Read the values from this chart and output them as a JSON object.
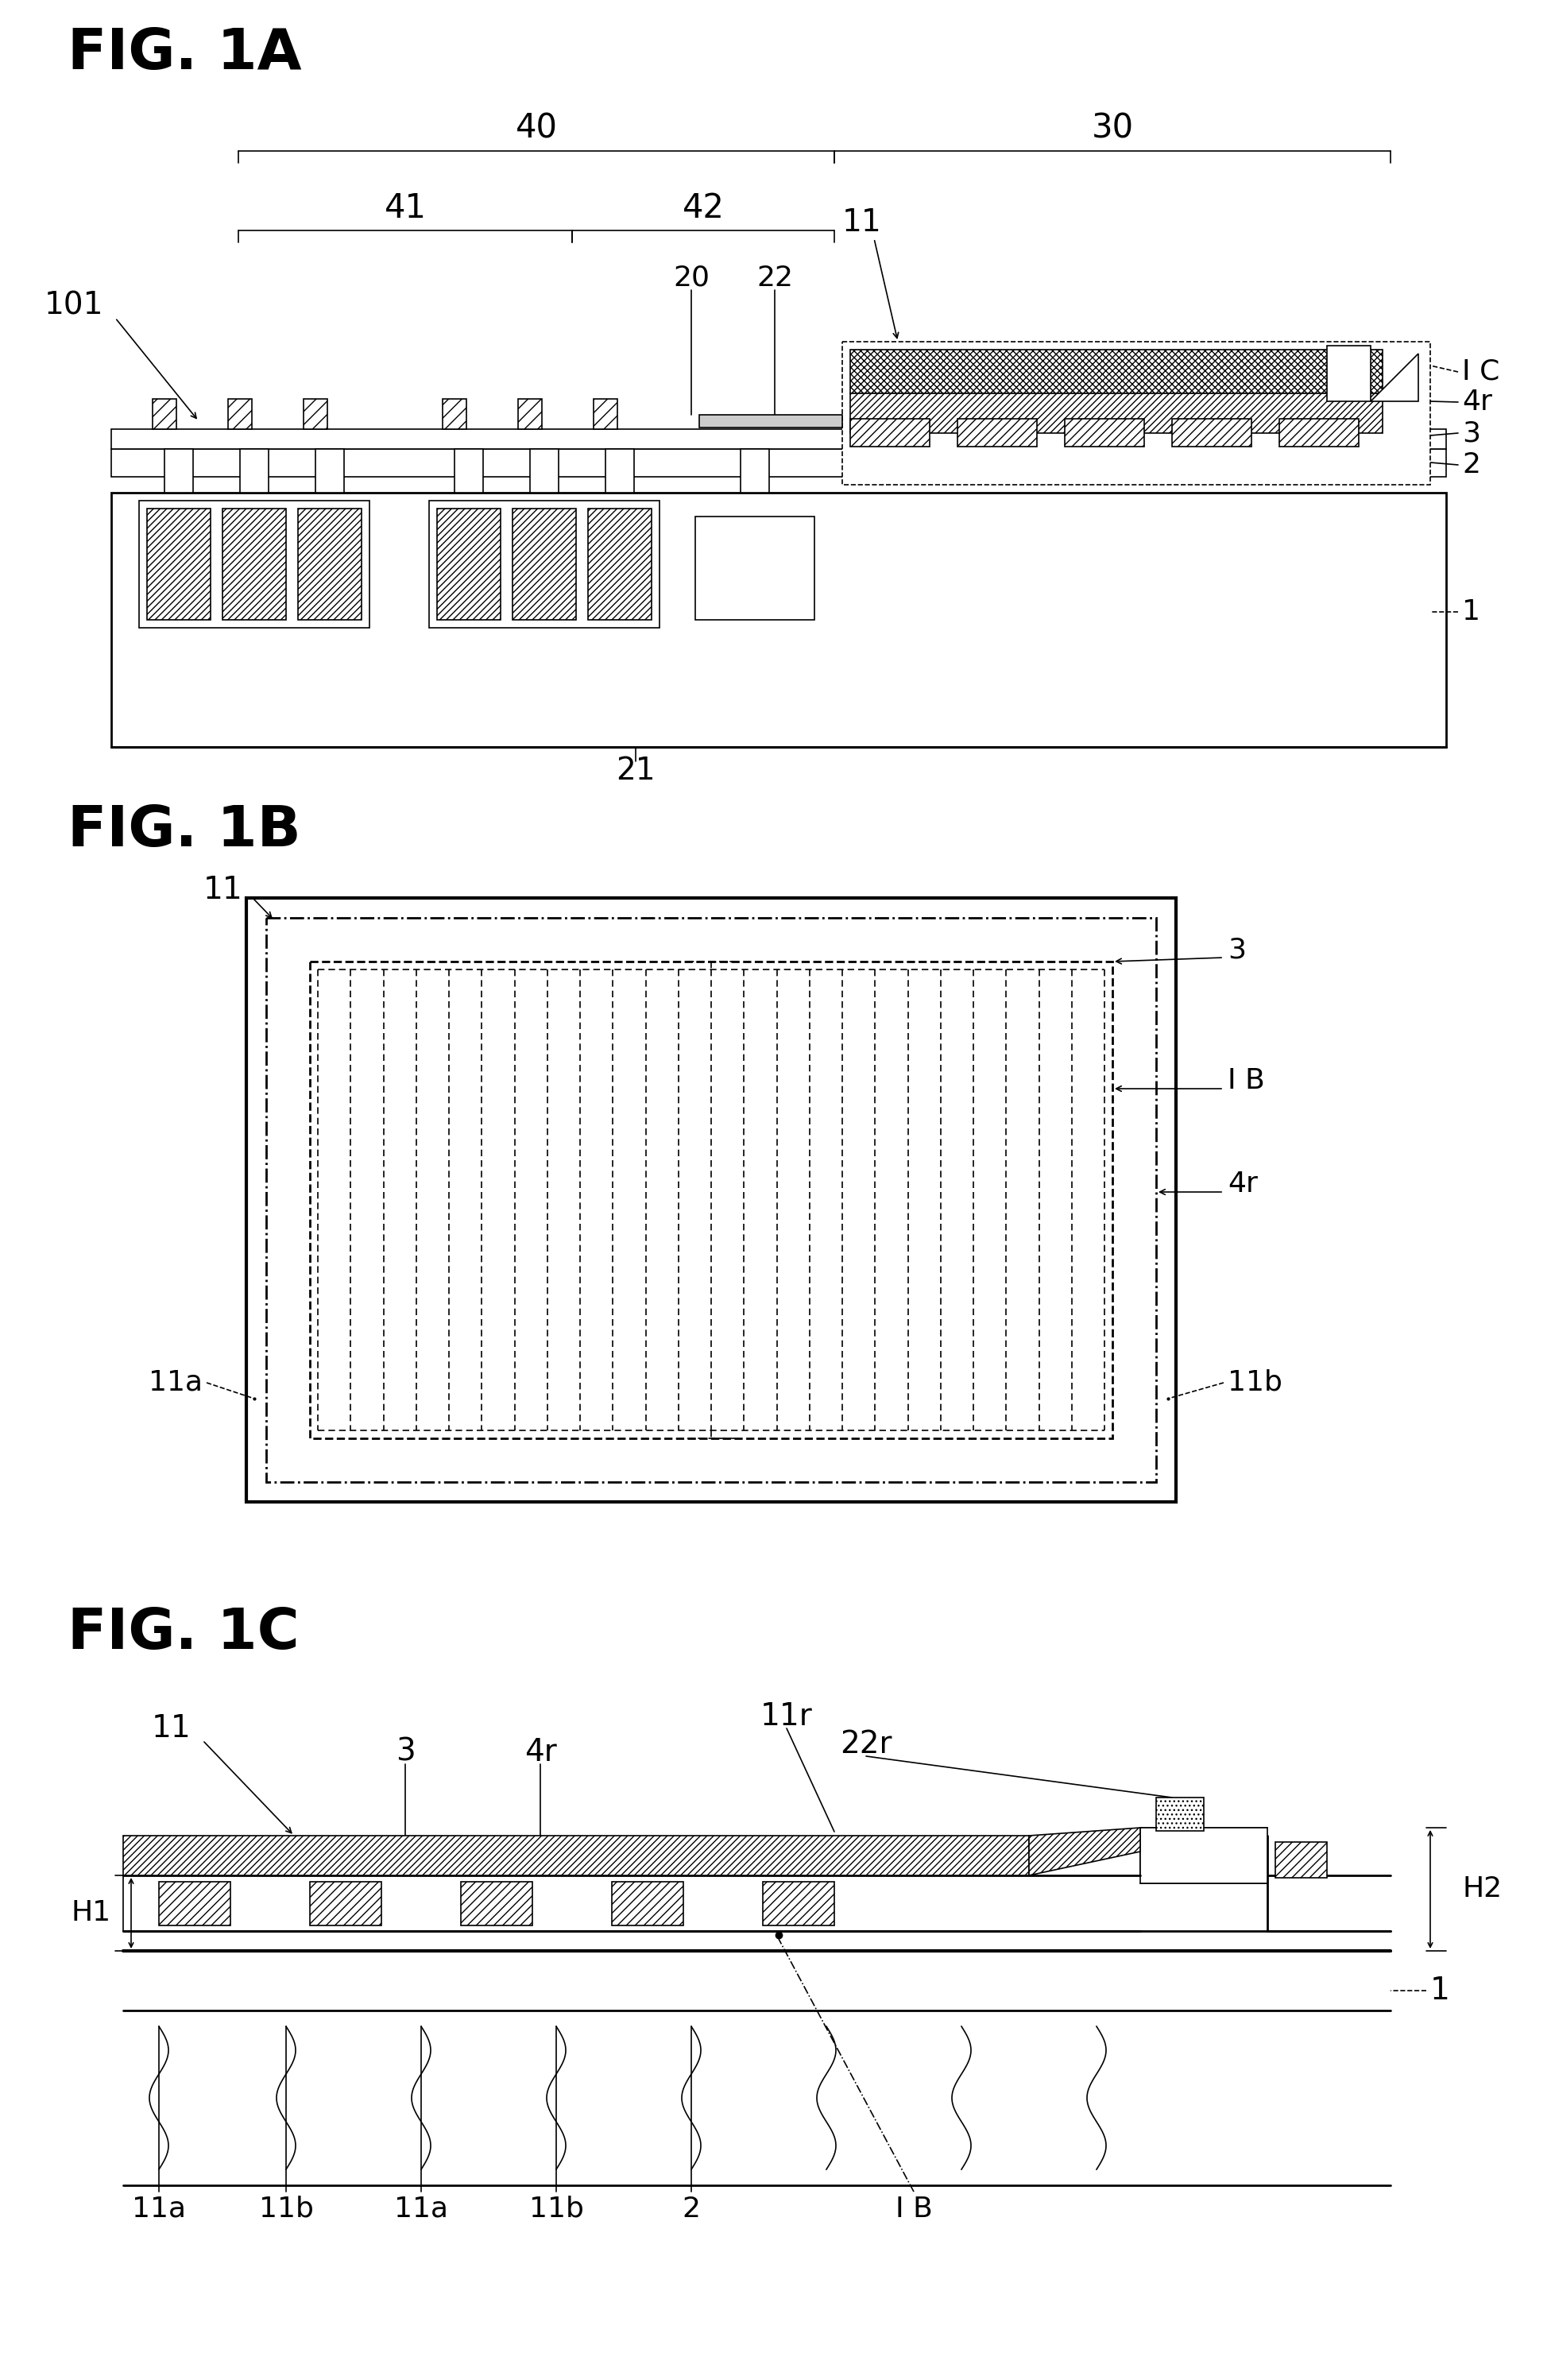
{
  "bg_color": "#ffffff",
  "line_color": "#000000",
  "fig1a_label": "FIG. 1A",
  "fig1b_label": "FIG. 1B",
  "fig1c_label": "FIG. 1C"
}
